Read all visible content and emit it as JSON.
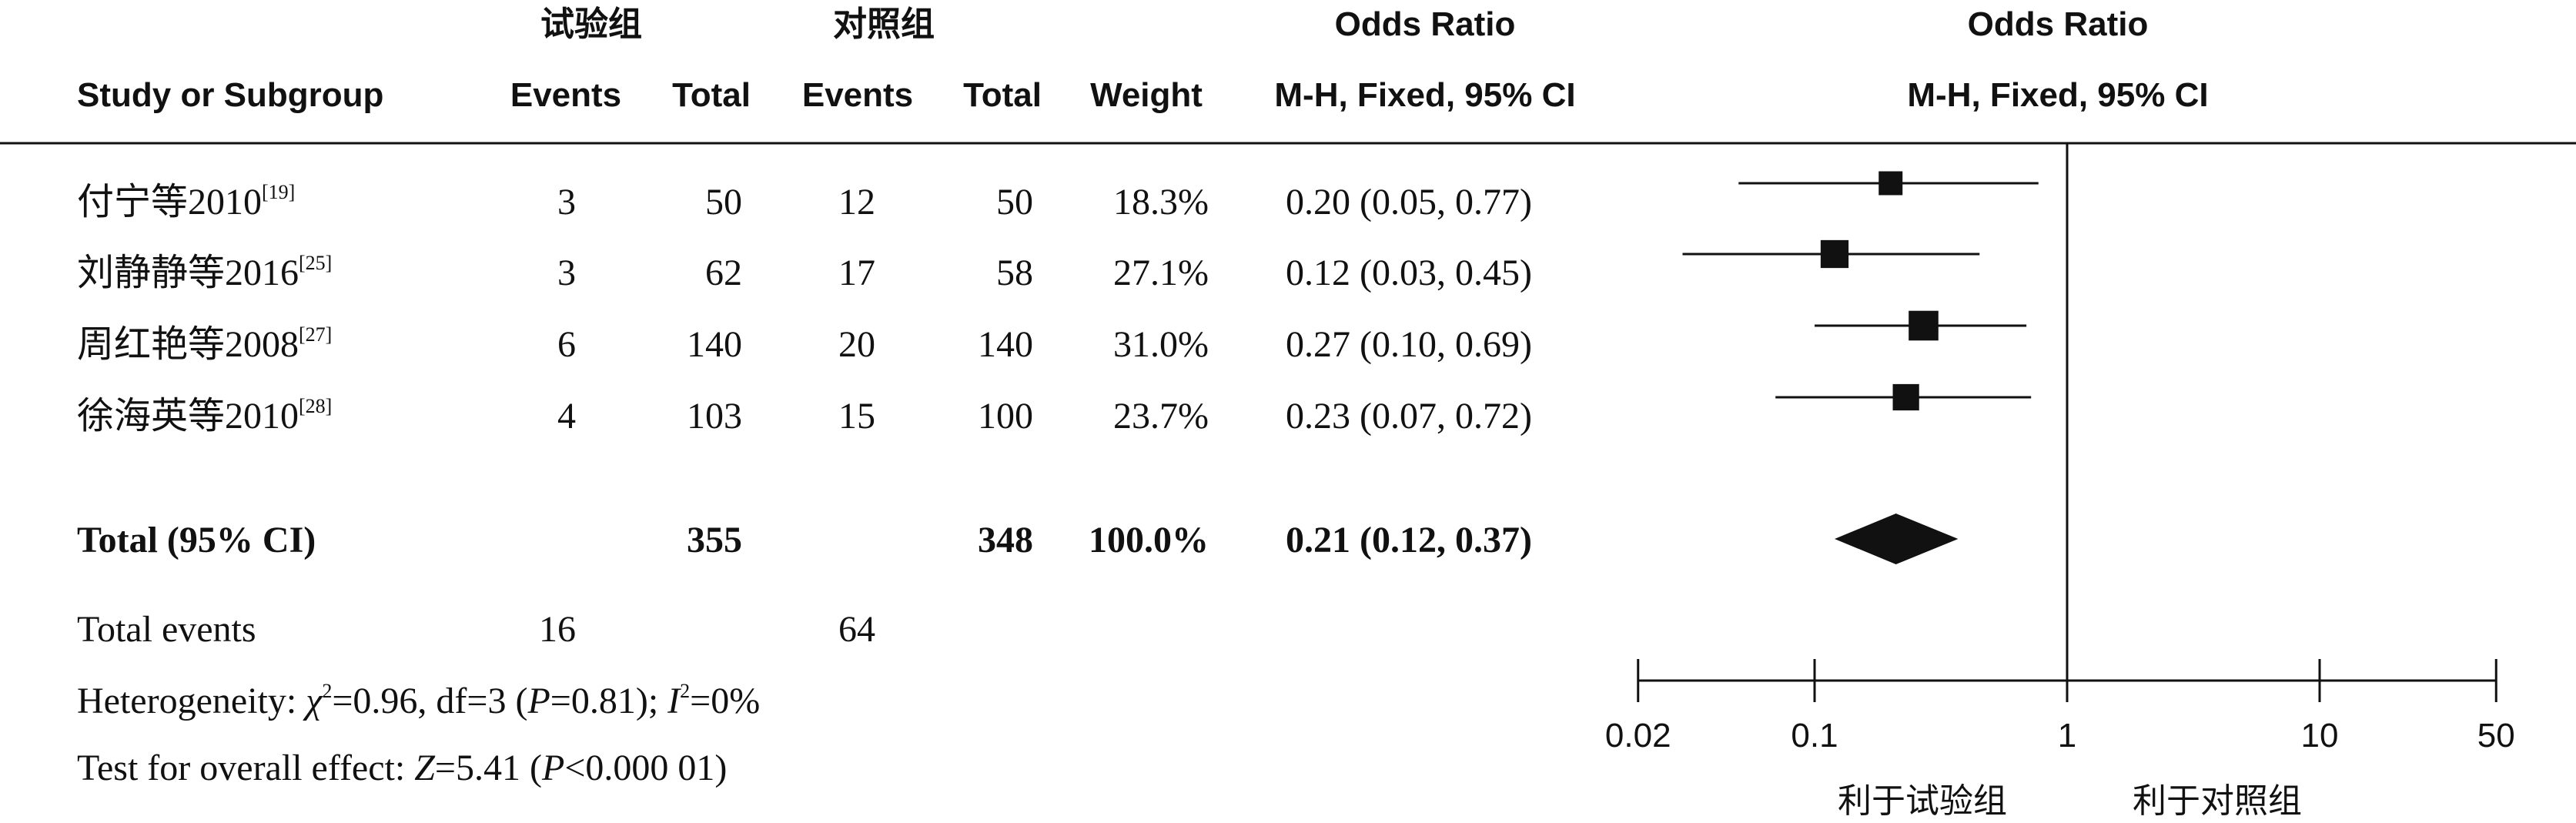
{
  "headers": {
    "group_exp": "试验组",
    "group_ctl": "对照组",
    "study": "Study or Subgroup",
    "events": "Events",
    "total": "Total",
    "weight": "Weight",
    "or_label": "Odds Ratio",
    "or_method": "M-H, Fixed, 95% CI"
  },
  "chart_data": {
    "type": "forest",
    "x_scale": "log",
    "xlim": [
      0.02,
      50
    ],
    "x_ticks": [
      "0.02",
      "0.1",
      "1",
      "10",
      "50"
    ],
    "null_line": 1,
    "favours_left": "利于试验组",
    "favours_right": "利于对照组",
    "studies": [
      {
        "name": "付宁等2010",
        "ref": "[19]",
        "exp_events": 3,
        "exp_total": 50,
        "ctl_events": 12,
        "ctl_total": 50,
        "weight": "18.3%",
        "or_text": "0.20 (0.05, 0.77)",
        "or": 0.2,
        "lo": 0.05,
        "hi": 0.77,
        "weight_pct": 18.3
      },
      {
        "name": "刘静静等2016",
        "ref": "[25]",
        "exp_events": 3,
        "exp_total": 62,
        "ctl_events": 17,
        "ctl_total": 58,
        "weight": "27.1%",
        "or_text": "0.12 (0.03, 0.45)",
        "or": 0.12,
        "lo": 0.03,
        "hi": 0.45,
        "weight_pct": 27.1
      },
      {
        "name": "周红艳等2008",
        "ref": "[27]",
        "exp_events": 6,
        "exp_total": 140,
        "ctl_events": 20,
        "ctl_total": 140,
        "weight": "31.0%",
        "or_text": "0.27 (0.10, 0.69)",
        "or": 0.27,
        "lo": 0.1,
        "hi": 0.69,
        "weight_pct": 31.0
      },
      {
        "name": "徐海英等2010",
        "ref": "[28]",
        "exp_events": 4,
        "exp_total": 103,
        "ctl_events": 15,
        "ctl_total": 100,
        "weight": "23.7%",
        "or_text": "0.23 (0.07, 0.72)",
        "or": 0.23,
        "lo": 0.07,
        "hi": 0.72,
        "weight_pct": 23.7
      }
    ],
    "total": {
      "label": "Total (95% CI)",
      "exp_total": 355,
      "ctl_total": 348,
      "weight": "100.0%",
      "or_text": "0.21 (0.12, 0.37)",
      "or": 0.21,
      "lo": 0.12,
      "hi": 0.37
    },
    "total_events": {
      "label": "Total events",
      "exp": 16,
      "ctl": 64
    },
    "heterogeneity": {
      "prefix": "Heterogeneity: ",
      "chi_symbol": "χ",
      "chi_sq_sup": "2",
      "chi_value": "=0.96, df=3 (",
      "p_symbol": "P",
      "p_value": "=0.81); ",
      "i_symbol": "I",
      "i_sup": "2",
      "i_value": "=0%"
    },
    "overall_effect": {
      "prefix": "Test for overall effect: ",
      "z_symbol": "Z",
      "z_value": "=5.41 (",
      "p_symbol": "P",
      "p_value": "<0.000 01)"
    }
  }
}
